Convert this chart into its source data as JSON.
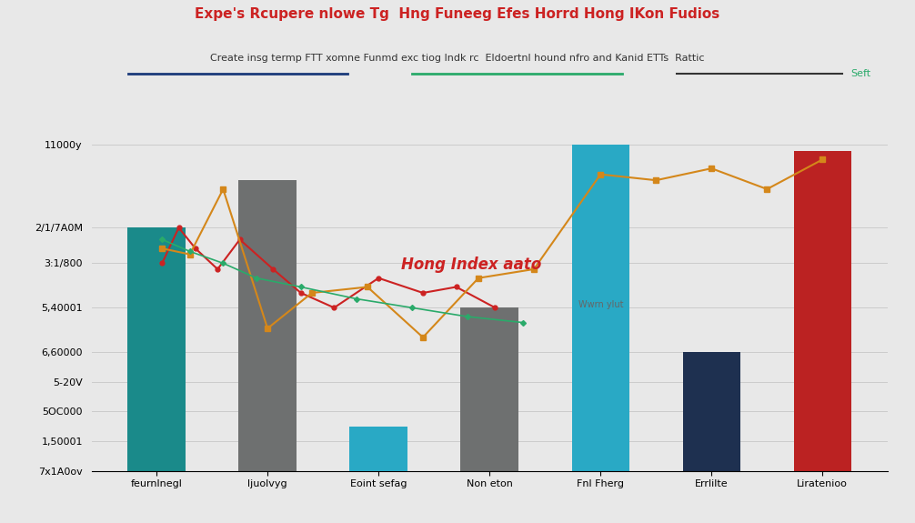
{
  "title": "Expe's Rcupere nlowe Tg  Hng Funeeg Efes Horrd Hong IKon Fudios",
  "subtitle": "Create insg termp FTT xomne Funmd exc tiog Indk rc  Eldoertnl hound nfro and Kanid ETTs  Rattic",
  "categories": [
    "feurnlnegl",
    "ljuolvyg",
    "Eoint sefag",
    "Non eton",
    "Fnl Fherg",
    "Errlilte",
    "Liratenioo"
  ],
  "bar_values": [
    82,
    98,
    5,
    55,
    110,
    40,
    108
  ],
  "bar_colors": [
    "#1a8a8a",
    "#6e7070",
    "#6e7070",
    "#6e7070",
    "#29a9c5",
    "#1e3050",
    "#bb2222"
  ],
  "teal_bar_index": 2,
  "teal_bar_value": 15,
  "teal_bar_color": "#29a9c5",
  "y_ticks_labels": [
    "7x1A0ov",
    "1,50001",
    "5OC000",
    "5-20V",
    "6,60000",
    "5,40001",
    "3:1/800",
    "2/1/7A0M",
    "11000y"
  ],
  "y_tick_positions": [
    0,
    10,
    20,
    30,
    40,
    55,
    70,
    82,
    110
  ],
  "ylim": [
    0,
    120
  ],
  "legend_label": "Seft",
  "annotation_text": "Hong Index aato",
  "annotation2_text": "Wwrn ylut",
  "background_color": "#e8e8e8",
  "title_color": "#cc2222",
  "subtitle_color": "#333333",
  "legend_line1_color": "#1a3a7a",
  "legend_line2_color": "#2aaa6a",
  "legend_line3_color": "#333333",
  "red_line_color": "#cc2222",
  "orange_line_color": "#d4871a",
  "green_line_color": "#2aaa6a",
  "red_line_x": [
    0.05,
    0.2,
    0.35,
    0.55,
    0.75,
    1.05,
    1.3,
    1.6,
    2.0,
    2.4,
    2.7,
    3.05
  ],
  "red_line_y": [
    70,
    82,
    75,
    68,
    78,
    68,
    60,
    55,
    65,
    60,
    62,
    55
  ],
  "orange_line_x": [
    0.05,
    0.3,
    0.6,
    1.0,
    1.4,
    1.9,
    2.4,
    2.9,
    3.4,
    4.0,
    4.5,
    5.0,
    5.5,
    6.0
  ],
  "orange_line_y": [
    75,
    73,
    95,
    48,
    60,
    62,
    45,
    65,
    68,
    100,
    98,
    102,
    95,
    105
  ],
  "green_line_x": [
    0.05,
    0.3,
    0.6,
    0.9,
    1.3,
    1.8,
    2.3,
    2.8,
    3.3
  ],
  "green_line_y": [
    78,
    74,
    70,
    65,
    62,
    58,
    55,
    52,
    50
  ]
}
